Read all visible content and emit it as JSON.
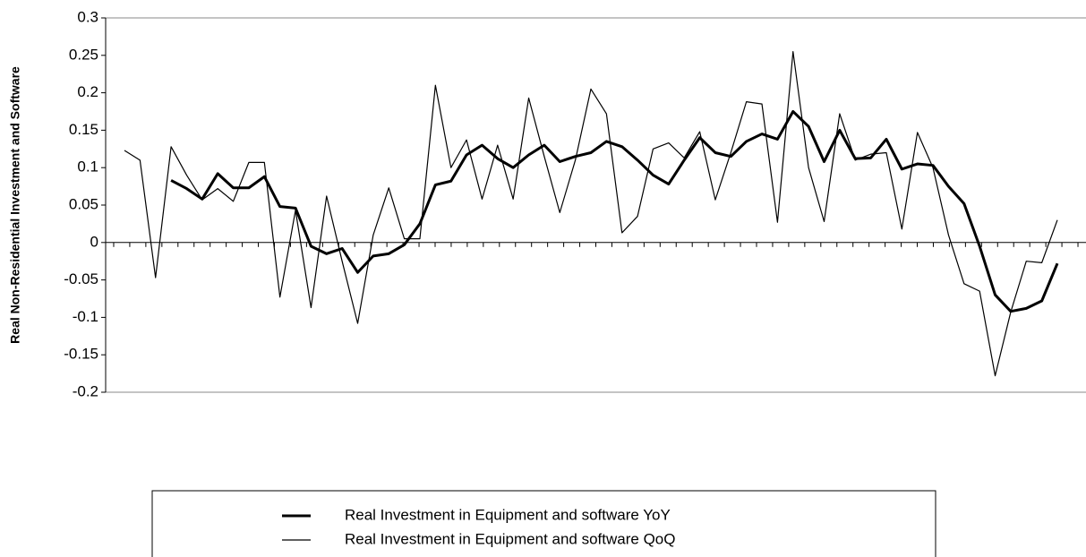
{
  "chart_data": {
    "type": "line",
    "y_label": "Real Non-Residential Investment and Software",
    "categories": [
      null,
      null,
      null,
      null,
      null,
      null,
      null,
      null,
      null,
      null,
      null,
      null,
      null,
      null,
      null,
      null,
      null,
      null,
      null,
      null,
      null,
      null,
      null,
      null,
      null,
      null,
      null,
      null,
      null,
      null,
      null,
      null,
      null,
      null,
      null,
      null,
      null,
      null,
      null,
      null,
      null,
      null,
      null,
      null,
      null,
      null,
      null,
      null,
      null,
      null,
      null,
      null,
      null,
      null,
      null,
      null,
      null,
      null,
      null,
      null,
      null
    ],
    "series": [
      {
        "name": "Real Investment in Equipment and software YoY",
        "color": "#000000",
        "width": 3,
        "values": [
          null,
          null,
          null,
          0.083,
          0.072,
          0.058,
          0.092,
          0.073,
          0.073,
          0.088,
          0.048,
          0.046,
          -0.005,
          -0.015,
          -0.008,
          -0.04,
          -0.018,
          -0.015,
          -0.003,
          0.025,
          0.077,
          0.082,
          0.117,
          0.13,
          0.112,
          0.1,
          0.117,
          0.13,
          0.108,
          0.115,
          0.12,
          0.135,
          0.128,
          0.11,
          0.09,
          0.078,
          0.11,
          0.14,
          0.12,
          0.115,
          0.135,
          0.145,
          0.138,
          0.175,
          0.155,
          0.108,
          0.15,
          0.112,
          0.113,
          0.138,
          0.098,
          0.105,
          0.103,
          0.075,
          0.052,
          -0.005,
          -0.07,
          -0.092,
          -0.088,
          -0.078,
          -0.028
        ]
      },
      {
        "name": "Real Investment in Equipment and software QoQ",
        "color": "#000000",
        "width": 1.2,
        "values": [
          0.123,
          0.11,
          -0.047,
          0.128,
          0.09,
          0.057,
          0.072,
          0.055,
          0.107,
          0.107,
          -0.073,
          0.043,
          -0.087,
          0.062,
          -0.025,
          -0.108,
          0.01,
          0.073,
          0.005,
          0.005,
          0.21,
          0.1,
          0.137,
          0.058,
          0.13,
          0.058,
          0.193,
          0.115,
          0.04,
          0.11,
          0.205,
          0.172,
          0.013,
          0.035,
          0.125,
          0.133,
          0.113,
          0.148,
          0.057,
          0.12,
          0.188,
          0.185,
          0.027,
          0.255,
          0.1,
          0.028,
          0.172,
          0.11,
          0.118,
          0.12,
          0.018,
          0.147,
          0.1,
          0.01,
          -0.055,
          -0.065,
          -0.178,
          -0.093,
          -0.025,
          -0.027,
          0.03
        ]
      }
    ],
    "ylim": [
      -0.2,
      0.3
    ],
    "yticks": [
      -0.2,
      -0.15,
      -0.1,
      -0.05,
      0,
      0.05,
      0.1,
      0.15,
      0.2,
      0.25,
      0.3
    ],
    "legend": "bottom"
  }
}
